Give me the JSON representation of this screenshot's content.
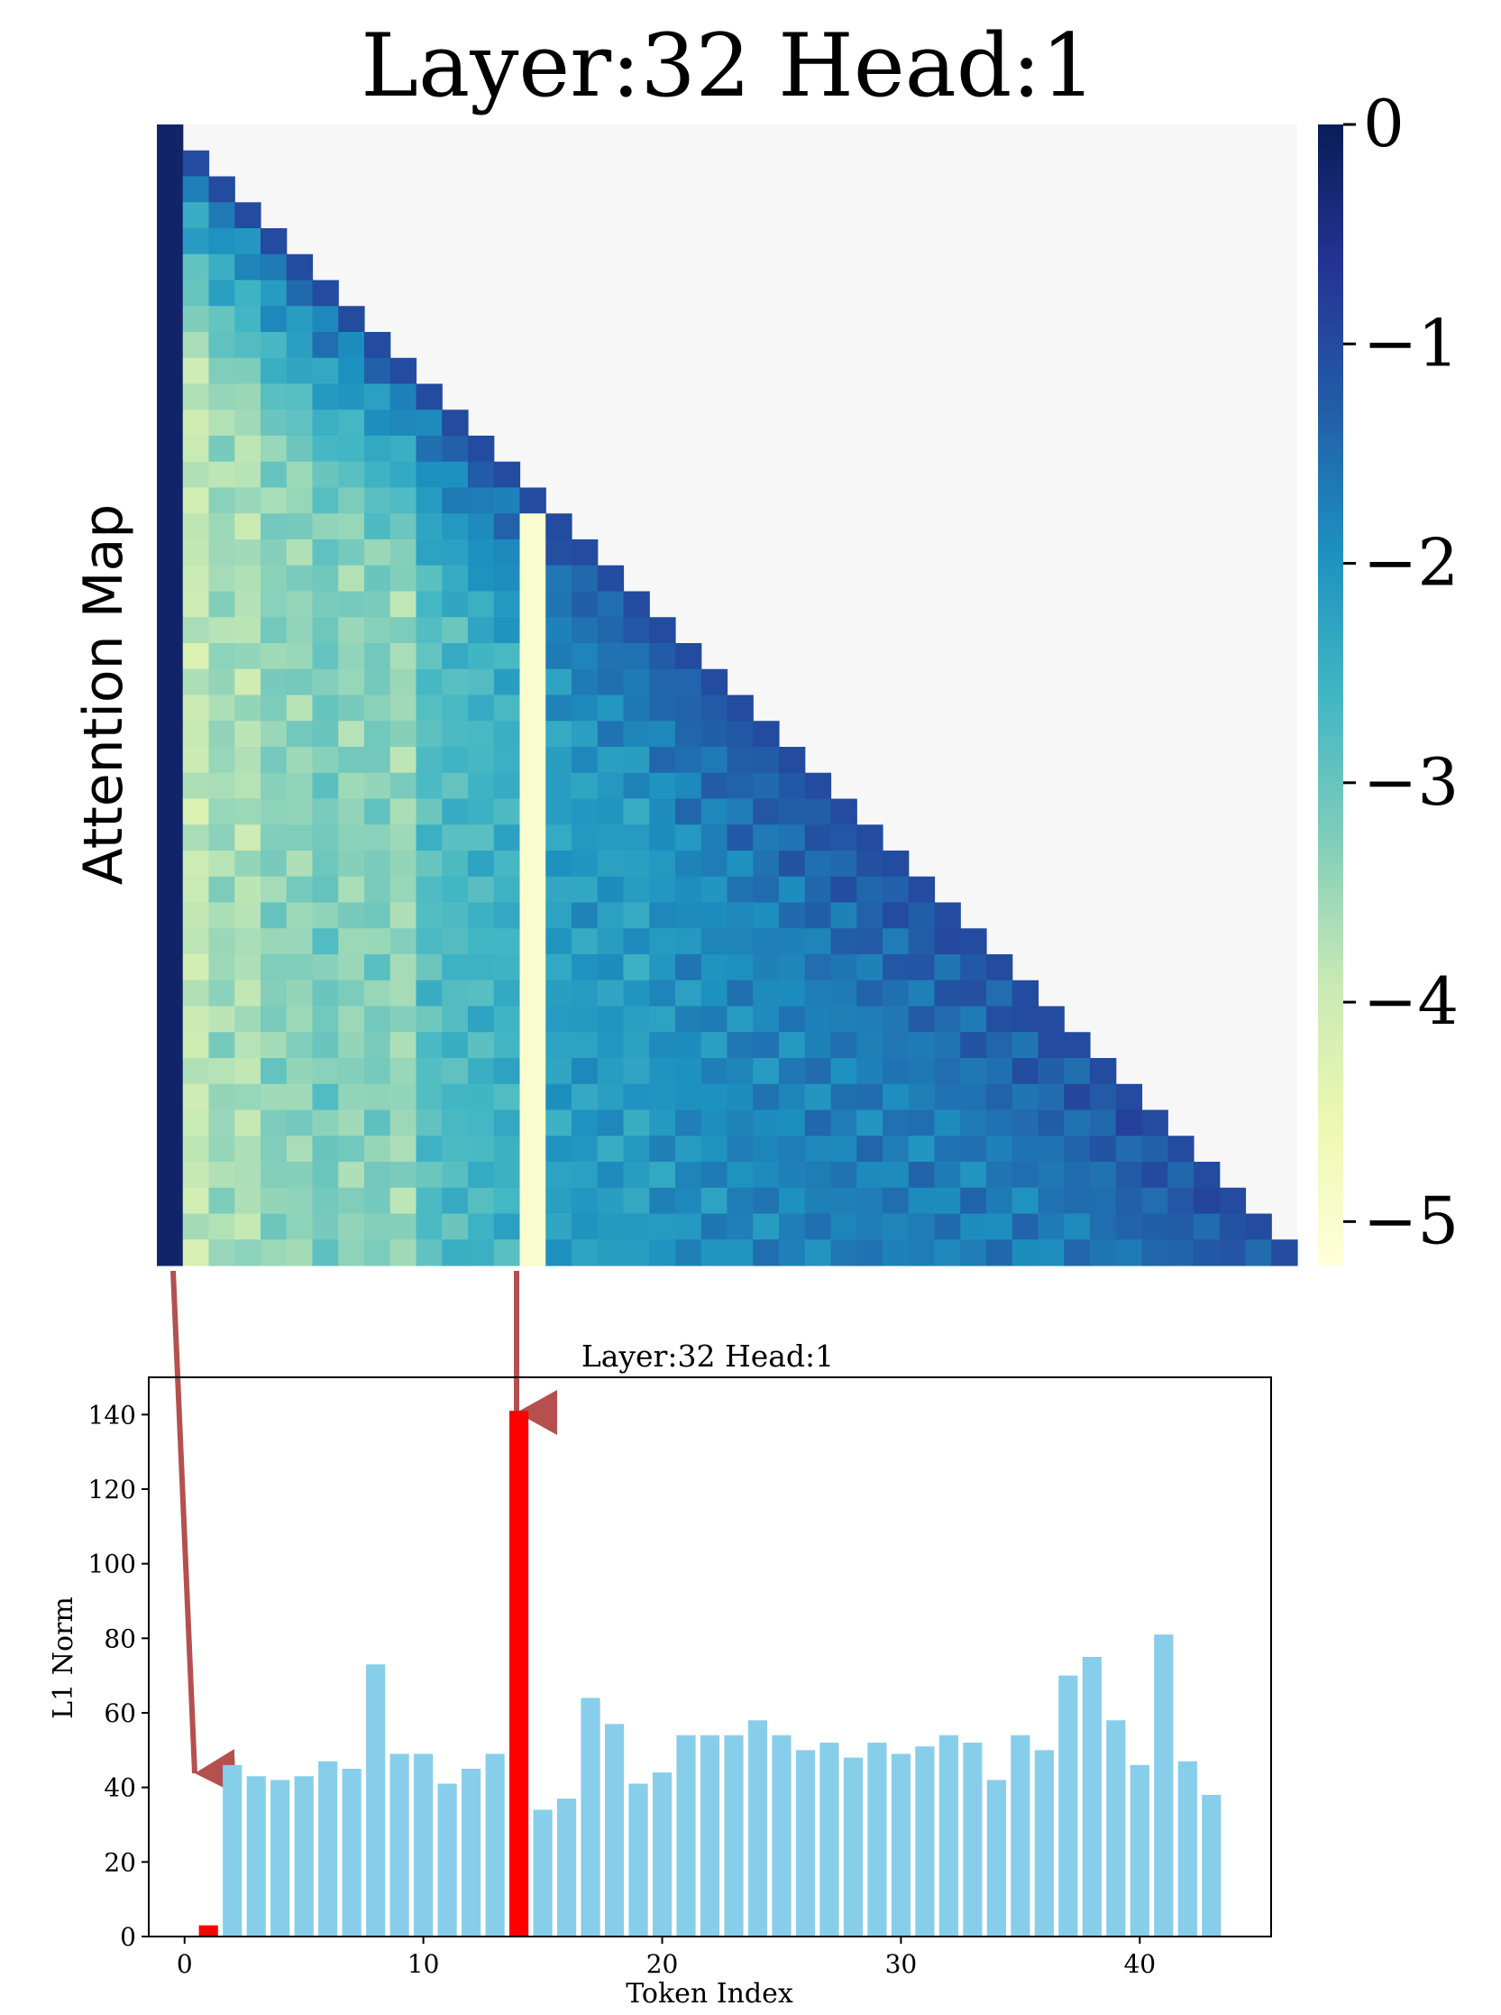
{
  "colors": {
    "highlight_bar": "#ff0000",
    "normal_bar": "#87ceeb",
    "arrow": "#b5504f",
    "heatmap_mask": "#f7f7f7",
    "colormap_stops": [
      "#ffffd9",
      "#edf8b1",
      "#c7e9b4",
      "#7fcdbb",
      "#41b6c4",
      "#1d91c0",
      "#225ea8",
      "#253494",
      "#081d58"
    ]
  },
  "chart_data": [
    {
      "type": "heatmap",
      "title": "Layer:32 Head:1",
      "ylabel": "Attention Map",
      "size": 44,
      "mask": "upper-triangle",
      "value_range": [
        -5.2,
        0
      ],
      "colorbar": {
        "ticks": [
          0,
          -1,
          -2,
          -3,
          -4,
          -5
        ],
        "tick_labels": [
          "0",
          "−1",
          "−2",
          "−3",
          "−4",
          "−5"
        ]
      },
      "column_profile": [
        -0.2,
        -3.9,
        -3.5,
        -3.7,
        -3.3,
        -3.4,
        -3.1,
        -3.4,
        -3.2,
        -3.5,
        -2.8,
        -2.7,
        -2.6,
        -2.5,
        -5.0,
        -2.2,
        -2.1,
        -2.1,
        -2.2,
        -2.0,
        -1.9,
        -1.9,
        -1.8,
        -1.8,
        -1.8,
        -1.7,
        -1.7,
        -1.7,
        -1.7,
        -1.7,
        -1.7,
        -1.7,
        -1.7,
        -1.7,
        -1.7,
        -1.7,
        -1.7,
        -1.6,
        -1.6,
        -1.6,
        -1.6,
        -1.6,
        -1.6,
        -1.6
      ],
      "diagonal_value": -1.0
    },
    {
      "type": "bar",
      "title": "Layer:32 Head:1",
      "xlabel": "Token Index",
      "ylabel": "L1 Norm",
      "xlim": [
        -1.5,
        45.5
      ],
      "ylim": [
        0,
        150
      ],
      "xticks": [
        0,
        10,
        20,
        30,
        40
      ],
      "yticks": [
        0,
        20,
        40,
        60,
        80,
        100,
        120,
        140
      ],
      "x": [
        0,
        1,
        2,
        3,
        4,
        5,
        6,
        7,
        8,
        9,
        10,
        11,
        12,
        13,
        14,
        15,
        16,
        17,
        18,
        19,
        20,
        21,
        22,
        23,
        24,
        25,
        26,
        27,
        28,
        29,
        30,
        31,
        32,
        33,
        34,
        35,
        36,
        37,
        38,
        39,
        40,
        41,
        42,
        43
      ],
      "values": [
        0,
        3,
        46,
        43,
        42,
        43,
        47,
        45,
        73,
        49,
        49,
        41,
        45,
        49,
        141,
        34,
        37,
        64,
        57,
        41,
        44,
        54,
        54,
        54,
        58,
        54,
        50,
        52,
        48,
        52,
        49,
        51,
        54,
        52,
        42,
        54,
        50,
        70,
        75,
        58,
        46,
        81,
        47,
        38
      ],
      "highlighted": [
        0,
        1,
        14
      ]
    }
  ]
}
